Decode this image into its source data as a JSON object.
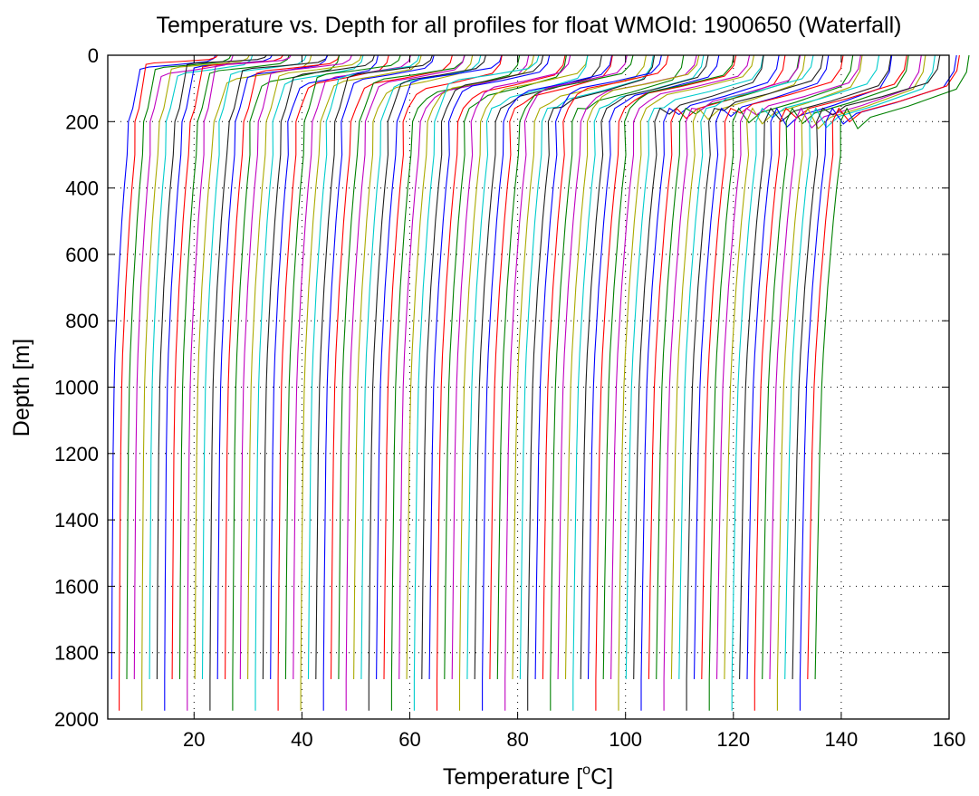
{
  "chart_data": {
    "type": "line",
    "title": "Temperature vs. Depth for all profiles for float WMOId: 1900650 (Waterfall)",
    "xlabel_main": "Temperature [",
    "xlabel_sup": "o",
    "xlabel_tail": "C]",
    "ylabel": "Depth [m]",
    "xlim": [
      4,
      160
    ],
    "ylim": [
      0,
      2000
    ],
    "y_reversed": true,
    "grid": "dotted",
    "xticks": [
      20,
      40,
      60,
      80,
      100,
      120,
      140,
      160
    ],
    "yticks": [
      0,
      200,
      400,
      600,
      800,
      1000,
      1200,
      1400,
      1600,
      1800,
      2000
    ],
    "series_colors": [
      "#0000ff",
      "#ff0000",
      "#008000",
      "#c000c0",
      "#aaaa00",
      "#00cccc",
      "#202020"
    ],
    "profile_count": 94,
    "first_profile_offset": 4,
    "offset_step": 1.4,
    "max_depth_shallow": 1880,
    "max_depth_deep": 1975,
    "representative_profile": {
      "depth": [
        0,
        30,
        60,
        90,
        110,
        130,
        160,
        200,
        300,
        400,
        500,
        600,
        700,
        800,
        900,
        1000,
        1200,
        1400,
        1600,
        1880
      ],
      "temperature": [
        25.0,
        24.6,
        23.0,
        15.5,
        9.5,
        7.5,
        5.8,
        4.8,
        4.0,
        3.4,
        2.9,
        2.5,
        2.1,
        1.8,
        1.5,
        1.3,
        1.1,
        1.0,
        0.9,
        0.8
      ]
    }
  }
}
